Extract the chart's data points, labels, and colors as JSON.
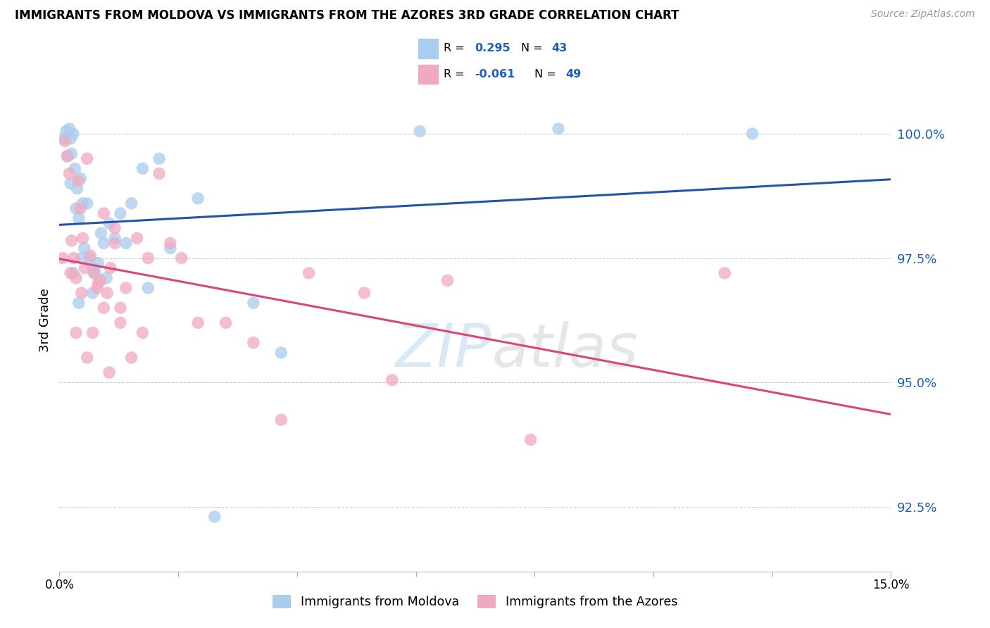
{
  "title": "IMMIGRANTS FROM MOLDOVA VS IMMIGRANTS FROM THE AZORES 3RD GRADE CORRELATION CHART",
  "source": "Source: ZipAtlas.com",
  "ylabel": "3rd Grade",
  "yticks": [
    92.5,
    95.0,
    97.5,
    100.0
  ],
  "ytick_labels": [
    "92.5%",
    "95.0%",
    "97.5%",
    "100.0%"
  ],
  "xlim": [
    0.0,
    15.0
  ],
  "ylim": [
    91.2,
    101.3
  ],
  "moldova_color": "#aaccee",
  "azores_color": "#f0aac0",
  "moldova_line_color": "#2255aa",
  "azores_line_color": "#dd4477",
  "moldova_x": [
    0.08,
    0.12,
    0.18,
    0.22,
    0.25,
    0.28,
    0.32,
    0.38,
    0.42,
    0.15,
    0.2,
    0.3,
    0.35,
    0.45,
    0.5,
    0.55,
    0.6,
    0.65,
    0.7,
    0.75,
    0.8,
    0.9,
    1.0,
    1.1,
    1.2,
    1.5,
    1.8,
    2.0,
    2.5,
    0.25,
    0.4,
    0.6,
    0.85,
    1.3,
    3.5,
    4.0,
    6.5,
    9.0,
    12.5,
    1.6,
    2.8,
    0.2,
    0.35
  ],
  "moldova_y": [
    99.9,
    100.05,
    100.1,
    99.6,
    100.0,
    99.3,
    98.9,
    99.1,
    98.6,
    99.55,
    99.0,
    98.5,
    98.3,
    97.7,
    98.6,
    97.5,
    97.3,
    97.2,
    97.4,
    98.0,
    97.8,
    98.2,
    97.9,
    98.4,
    97.8,
    99.3,
    99.5,
    97.7,
    98.7,
    97.2,
    97.5,
    96.8,
    97.1,
    98.6,
    96.6,
    95.6,
    100.05,
    100.1,
    100.0,
    96.9,
    92.3,
    99.9,
    96.6
  ],
  "azores_x": [
    0.06,
    0.1,
    0.14,
    0.18,
    0.22,
    0.26,
    0.3,
    0.34,
    0.38,
    0.42,
    0.46,
    0.5,
    0.56,
    0.62,
    0.68,
    0.74,
    0.8,
    0.86,
    0.92,
    1.0,
    1.1,
    1.2,
    1.4,
    1.6,
    1.8,
    2.0,
    2.5,
    3.0,
    3.5,
    4.5,
    5.5,
    0.3,
    0.5,
    0.7,
    0.9,
    1.1,
    1.3,
    1.5,
    2.2,
    0.2,
    0.4,
    0.6,
    0.8,
    1.0,
    6.0,
    8.5,
    7.0,
    4.0,
    12.0
  ],
  "azores_y": [
    97.5,
    99.85,
    99.55,
    99.2,
    97.85,
    97.5,
    97.1,
    99.05,
    98.5,
    97.9,
    97.3,
    99.5,
    97.55,
    97.2,
    96.9,
    97.05,
    96.5,
    96.8,
    97.3,
    97.8,
    96.2,
    96.9,
    97.9,
    97.5,
    99.2,
    97.8,
    96.2,
    96.2,
    95.8,
    97.2,
    96.8,
    96.0,
    95.5,
    97.0,
    95.2,
    96.5,
    95.5,
    96.0,
    97.5,
    97.2,
    96.8,
    96.0,
    98.4,
    98.1,
    95.05,
    93.85,
    97.05,
    94.25,
    97.2
  ]
}
